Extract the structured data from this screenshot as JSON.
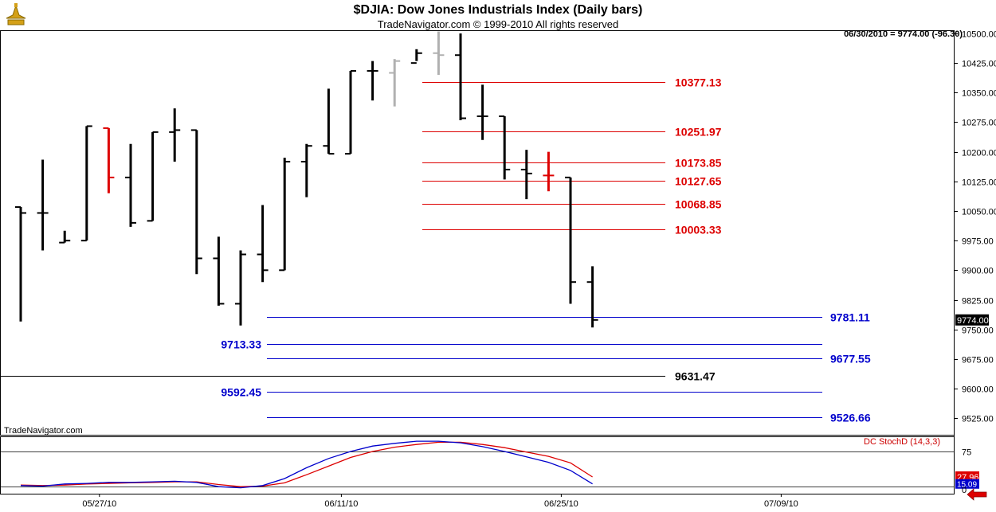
{
  "header": {
    "title": "$DJIA:  Dow Jones Industrials Index  (Daily bars)",
    "copyright": "TradeNavigator.com © 1999-2010 All rights reserved",
    "readout": "06/30/2010 = 9774.00 (-96.30)",
    "watermark": "TradeNavigator.com"
  },
  "indicator": {
    "label": "DC StochD (14,3,3)",
    "level_label": "75",
    "last_values": [
      "27.96",
      "15.09"
    ]
  },
  "colors": {
    "bar": "#000000",
    "bar_down_flag": "#dd0000",
    "bar_light": "#b0b0b0",
    "resistance": "#dd0000",
    "support": "#0000cc",
    "pivot": "#000000",
    "stoch_k": "#0000cc",
    "stoch_d": "#dd0000",
    "nav_arrow": "#dd0000"
  },
  "chart_data": {
    "type": "bar",
    "symbol": "$DJIA",
    "price_axis": {
      "ticks": [
        10500,
        10425,
        10350,
        10275,
        10200,
        10125,
        10050,
        9975,
        9900,
        9825,
        9750,
        9675,
        9600,
        9525
      ],
      "tick_labels": [
        "10500.00",
        "10425.00",
        "10350.00",
        "10275.00",
        "10200.00",
        "10125.00",
        "10050.00",
        "9975.00",
        "9900.00",
        "9825.00",
        "9750.00",
        "9675.00",
        "9600.00",
        "9525.00"
      ],
      "last_price_label": "9774.00",
      "last_price": 9774.0
    },
    "date_labels": [
      {
        "label": "05/27/10",
        "index": 3
      },
      {
        "label": "06/11/10",
        "index": 14
      },
      {
        "label": "06/25/10",
        "index": 24
      },
      {
        "label": "07/09/10",
        "index": 34
      }
    ],
    "bars": [
      {
        "o": 10060,
        "h": 10060,
        "l": 9770,
        "c": 10045,
        "style": "normal"
      },
      {
        "o": 10045,
        "h": 10180,
        "l": 9950,
        "c": 10045,
        "style": "normal"
      },
      {
        "o": 9970,
        "h": 10000,
        "l": 9970,
        "c": 9975,
        "style": "normal"
      },
      {
        "o": 9975,
        "h": 10265,
        "l": 9975,
        "c": 10265,
        "style": "normal"
      },
      {
        "o": 10260,
        "h": 10260,
        "l": 10095,
        "c": 10135,
        "style": "flag"
      },
      {
        "o": 10135,
        "h": 10220,
        "l": 10010,
        "c": 10020,
        "style": "normal"
      },
      {
        "o": 10025,
        "h": 10250,
        "l": 10025,
        "c": 10250,
        "style": "normal"
      },
      {
        "o": 10250,
        "h": 10310,
        "l": 10175,
        "c": 10255,
        "style": "normal"
      },
      {
        "o": 10255,
        "h": 10255,
        "l": 9890,
        "c": 9930,
        "style": "normal"
      },
      {
        "o": 9930,
        "h": 9985,
        "l": 9810,
        "c": 9815,
        "style": "normal"
      },
      {
        "o": 9815,
        "h": 9950,
        "l": 9760,
        "c": 9940,
        "style": "normal"
      },
      {
        "o": 9940,
        "h": 10065,
        "l": 9870,
        "c": 9900,
        "style": "normal"
      },
      {
        "o": 9900,
        "h": 10185,
        "l": 9900,
        "c": 10175,
        "style": "normal"
      },
      {
        "o": 10175,
        "h": 10220,
        "l": 10085,
        "c": 10215,
        "style": "normal"
      },
      {
        "o": 10215,
        "h": 10360,
        "l": 10195,
        "c": 10195,
        "style": "normal"
      },
      {
        "o": 10195,
        "h": 10405,
        "l": 10195,
        "c": 10405,
        "style": "normal"
      },
      {
        "o": 10405,
        "h": 10430,
        "l": 10330,
        "c": 10405,
        "style": "normal"
      },
      {
        "o": 10400,
        "h": 10435,
        "l": 10315,
        "c": 10430,
        "style": "light"
      },
      {
        "o": 10425,
        "h": 10460,
        "l": 10430,
        "c": 10450,
        "style": "normal"
      },
      {
        "o": 10450,
        "h": 10505,
        "l": 10395,
        "c": 10445,
        "style": "light"
      },
      {
        "o": 10445,
        "h": 10500,
        "l": 10280,
        "c": 10285,
        "style": "normal"
      },
      {
        "o": 10290,
        "h": 10370,
        "l": 10230,
        "c": 10290,
        "style": "normal"
      },
      {
        "o": 10290,
        "h": 10290,
        "l": 10130,
        "c": 10155,
        "style": "normal"
      },
      {
        "o": 10155,
        "h": 10205,
        "l": 10080,
        "c": 10145,
        "style": "normal"
      },
      {
        "o": 10140,
        "h": 10200,
        "l": 10100,
        "c": 10140,
        "style": "flag"
      },
      {
        "o": 10135,
        "h": 10135,
        "l": 9815,
        "c": 9870,
        "style": "normal"
      },
      {
        "o": 9870,
        "h": 9910,
        "l": 9755,
        "c": 9774,
        "style": "normal"
      }
    ],
    "levels": [
      {
        "value": 10377.13,
        "label": "10377.13",
        "kind": "resistance",
        "label_side": "right"
      },
      {
        "value": 10251.97,
        "label": "10251.97",
        "kind": "resistance",
        "label_side": "right"
      },
      {
        "value": 10173.85,
        "label": "10173.85",
        "kind": "resistance",
        "label_side": "right"
      },
      {
        "value": 10127.65,
        "label": "10127.65",
        "kind": "resistance",
        "label_side": "right"
      },
      {
        "value": 10068.85,
        "label": "10068.85",
        "kind": "resistance",
        "label_side": "right"
      },
      {
        "value": 10003.33,
        "label": "10003.33",
        "kind": "resistance",
        "label_side": "right"
      },
      {
        "value": 9781.11,
        "label": "9781.11",
        "kind": "support",
        "label_side": "far-right"
      },
      {
        "value": 9713.33,
        "label": "9713.33",
        "kind": "support",
        "label_side": "left"
      },
      {
        "value": 9677.55,
        "label": "9677.55",
        "kind": "support",
        "label_side": "far-right"
      },
      {
        "value": 9631.47,
        "label": "9631.47",
        "kind": "pivot",
        "label_side": "right"
      },
      {
        "value": 9592.45,
        "label": "9592.45",
        "kind": "support",
        "label_side": "left"
      },
      {
        "value": 9526.66,
        "label": "9526.66",
        "kind": "support",
        "label_side": "far-right"
      }
    ],
    "stoch": {
      "k": [
        12,
        11,
        15,
        16,
        18,
        18,
        19,
        20,
        18,
        10,
        8,
        12,
        25,
        45,
        62,
        75,
        85,
        90,
        94,
        94,
        91,
        84,
        75,
        65,
        55,
        40,
        15.09
      ],
      "d": [
        13,
        12,
        13,
        15,
        16,
        17,
        18,
        19,
        19,
        14,
        10,
        11,
        17,
        32,
        48,
        64,
        75,
        83,
        88,
        92,
        92,
        88,
        82,
        74,
        66,
        54,
        27.96
      ],
      "ylim": [
        0,
        100
      ],
      "level": 75
    }
  }
}
